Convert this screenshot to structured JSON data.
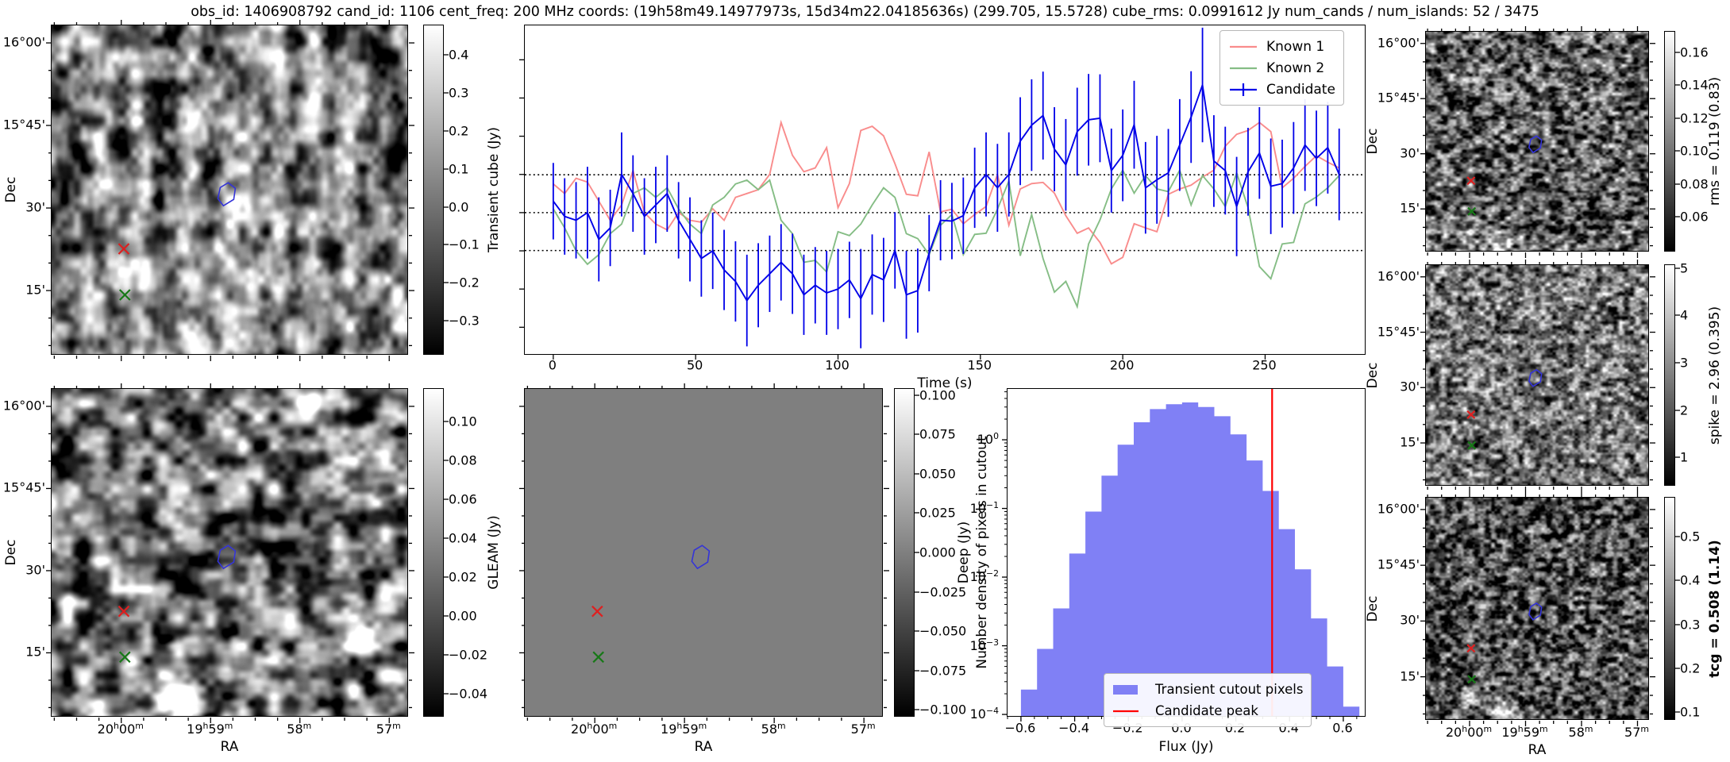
{
  "title": "obs_id: 1406908792 cand_id: 1106 cent_freq: 200 MHz coords: (19h58m49.14977973s, 15d34m22.04185636s) (299.705, 15.5728) cube_rms: 0.0991612 Jy num_cands / num_islands: 52 / 3475",
  "axes": {
    "dec_label": "Dec",
    "ra_label": "RA",
    "dec_ticks": [
      "16°00'",
      "15°45'",
      "30'",
      "15'"
    ],
    "ra_ticks": [
      "20h00m",
      "19h59m",
      "58m",
      "57m"
    ]
  },
  "markers": {
    "candidate_contour": {
      "shape": "contour",
      "color": "#3434d8"
    },
    "known1_x": {
      "shape": "x",
      "color": "#dd2020"
    },
    "known2_x": {
      "shape": "x",
      "color": "#177817"
    }
  },
  "panels": {
    "transient_cutout": {
      "colorbar_label": "Transient cube (Jy)",
      "colorbar_ticks": [
        "0.4",
        "0.3",
        "0.2",
        "0.1",
        "0.0",
        "-0.1",
        "-0.2",
        "-0.3"
      ],
      "colorbar_range": [
        -0.39,
        0.48
      ]
    },
    "gleam": {
      "colorbar_label": "GLEAM (Jy)",
      "colorbar_ticks": [
        "0.10",
        "0.08",
        "0.06",
        "0.04",
        "0.02",
        "0.00",
        "-0.02",
        "-0.04"
      ],
      "colorbar_range": [
        -0.052,
        0.117
      ]
    },
    "deep": {
      "colorbar_label": "Deep (Jy)",
      "colorbar_ticks": [
        "0.100",
        "0.075",
        "0.050",
        "0.025",
        "0.000",
        "-0.025",
        "-0.050",
        "-0.075",
        "-0.100"
      ],
      "colorbar_range": [
        -0.1043,
        0.1043
      ]
    },
    "rms": {
      "colorbar_label": "rms = 0.119 (0.83)",
      "label_bold": false,
      "colorbar_ticks": [
        "0.16",
        "0.14",
        "0.12",
        "0.10",
        "0.08",
        "0.06"
      ],
      "colorbar_range": [
        0.039,
        0.173
      ]
    },
    "spike": {
      "colorbar_label": "spike = 2.96 (0.395)",
      "label_bold": false,
      "colorbar_ticks": [
        "5",
        "4",
        "3",
        "2",
        "1"
      ],
      "colorbar_range": [
        0.4,
        5.08
      ]
    },
    "tcg": {
      "colorbar_label": "tcg = 0.508 (1.14)",
      "label_bold": true,
      "colorbar_ticks": [
        "0.5",
        "0.4",
        "0.3",
        "0.2",
        "0.1"
      ],
      "colorbar_range": [
        0.082,
        0.591
      ]
    }
  },
  "chart_data": [
    {
      "id": "lightcurve",
      "type": "line",
      "xlabel": "Time (s)",
      "ylabel": "",
      "xlim": [
        -10,
        285
      ],
      "ylim": [
        -0.37,
        0.49
      ],
      "x_ticks": [
        0,
        50,
        100,
        150,
        200,
        250
      ],
      "y_tick_min": -0.3,
      "y_tick_max": 0.4,
      "y_tick_step": 0.1,
      "hlines": [
        0.0991612,
        0.0,
        -0.0991612
      ],
      "legend_position": "upper right",
      "x": [
        0,
        4,
        8,
        12,
        16,
        20,
        24,
        28,
        32,
        36,
        40,
        44,
        48,
        52,
        56,
        60,
        64,
        68,
        72,
        76,
        80,
        84,
        88,
        92,
        96,
        100,
        104,
        108,
        112,
        116,
        120,
        124,
        128,
        132,
        136,
        140,
        144,
        148,
        152,
        156,
        160,
        164,
        168,
        172,
        176,
        180,
        184,
        188,
        192,
        196,
        200,
        204,
        208,
        212,
        216,
        220,
        224,
        228,
        232,
        236,
        240,
        244,
        248,
        252,
        256,
        260,
        264,
        268,
        272,
        276
      ],
      "series": [
        {
          "name": "Known 1",
          "color": "#f98c8c",
          "values": [
            0.075,
            0.05,
            0.09,
            0.08,
            0.03,
            -0.02,
            0.02,
            0.11,
            0,
            -0.03,
            -0.045,
            0,
            -0.02,
            -0.025,
            0.01,
            -0.02,
            0.04,
            0.05,
            0.06,
            0.1,
            0.236,
            0.15,
            0.107,
            0.117,
            0.17,
            0.013,
            0.076,
            0.215,
            0.226,
            0.201,
            0.128,
            0.048,
            0.044,
            0.159,
            0.002,
            0.009,
            -0.029,
            -0.005,
            0.016,
            0.1,
            -0.033,
            0.062,
            0.076,
            0.079,
            0.051,
            -0.008,
            -0.054,
            -0.04,
            -0.078,
            -0.134,
            -0.117,
            -0.029,
            -0.04,
            -0.05,
            0.048,
            0.062,
            0.072,
            0.093,
            0.111,
            0.174,
            0.205,
            0.215,
            0.236,
            0.212,
            0.065,
            0.09,
            0.121,
            0.149,
            0.132,
            0.117
          ]
        },
        {
          "name": "Known 2",
          "color": "#85bd85",
          "values": [
            0.01,
            -0.04,
            -0.1,
            -0.135,
            -0.11,
            -0.055,
            -0.03,
            0.05,
            0.065,
            0.04,
            0.065,
            0.01,
            -0.03,
            -0.055,
            0.02,
            0.04,
            0.075,
            0.085,
            0.06,
            0.085,
            -0.02,
            -0.055,
            -0.13,
            -0.125,
            -0.155,
            -0.05,
            -0.06,
            -0.03,
            0.02,
            0.065,
            0.04,
            -0.055,
            -0.068,
            -0.11,
            -0.033,
            -0.005,
            -0.11,
            -0.057,
            -0.054,
            0.009,
            0.083,
            -0.113,
            -0.005,
            -0.12,
            -0.208,
            -0.18,
            -0.246,
            -0.082,
            -0.019,
            0.062,
            0.111,
            0.051,
            0.097,
            0.062,
            0.055,
            0.111,
            0.02,
            0.097,
            0.062,
            0.016,
            0.104,
            0.013,
            -0.141,
            -0.173,
            -0.082,
            -0.078,
            0.023,
            0.041,
            0.065,
            0.097
          ]
        },
        {
          "name": "Candidate",
          "color": "#0000e8",
          "values": [
            0.03,
            -0.01,
            -0.02,
            0,
            -0.07,
            -0.04,
            0.1,
            0.05,
            -0.01,
            0.02,
            0.05,
            -0.02,
            -0.07,
            -0.12,
            -0.1,
            -0.15,
            -0.18,
            -0.23,
            -0.19,
            -0.16,
            -0.13,
            -0.16,
            -0.215,
            -0.19,
            -0.21,
            -0.2,
            -0.176,
            -0.225,
            -0.162,
            -0.176,
            -0.099,
            -0.215,
            -0.204,
            -0.106,
            -0.02,
            -0.022,
            -0.008,
            0.065,
            0.1,
            0.065,
            0.1,
            0.187,
            0.229,
            0.254,
            0.166,
            0.125,
            0.212,
            0.243,
            0.247,
            0.11,
            0.15,
            0.23,
            0.065,
            0.086,
            0.104,
            0.177,
            0.25,
            0.334,
            0.135,
            0.11,
            0.016,
            0.107,
            0.156,
            0.069,
            0.076,
            0.117,
            0.177,
            0.142,
            0.17,
            0.1
          ],
          "yerr": [
            0.1,
            0.1,
            0.1,
            0.12,
            0.11,
            0.1,
            0.11,
            0.1,
            0.1,
            0.1,
            0.1,
            0.1,
            0.11,
            0.1,
            0.1,
            0.105,
            0.105,
            0.12,
            0.11,
            0.1,
            0.1,
            0.105,
            0.105,
            0.1,
            0.11,
            0.105,
            0.1,
            0.13,
            0.105,
            0.11,
            0.1,
            0.115,
            0.11,
            0.1,
            0.105,
            0.1,
            0.1,
            0.105,
            0.11,
            0.115,
            0.11,
            0.115,
            0.12,
            0.115,
            0.11,
            0.12,
            0.115,
            0.12,
            0.115,
            0.11,
            0.12,
            0.115,
            0.12,
            0.115,
            0.115,
            0.12,
            0.12,
            0.15,
            0.12,
            0.115,
            0.13,
            0.115,
            0.12,
            0.125,
            0.115,
            0.12,
            0.12,
            0.125,
            0.12,
            0.12
          ]
        }
      ]
    },
    {
      "id": "flux-histogram",
      "type": "bar",
      "xlabel": "Flux (Jy)",
      "ylabel": "Number density of pixels in cutout",
      "yscale": "log",
      "xlim": [
        -0.65,
        0.68
      ],
      "ylim": [
        9.5e-05,
        5.5
      ],
      "x_ticks": [
        -0.6,
        -0.4,
        -0.2,
        0.0,
        0.2,
        0.4,
        0.6
      ],
      "y_ticks": [
        "10^0",
        "10^-1",
        "10^-2",
        "10^-3",
        "10^-4"
      ],
      "bin_start": -0.6,
      "bin_width": 0.06,
      "values": [
        0.00023,
        0.0009,
        0.0035,
        0.022,
        0.09,
        0.3,
        0.85,
        1.8,
        2.8,
        3.3,
        3.5,
        3.0,
        2.2,
        1.2,
        0.5,
        0.18,
        0.05,
        0.013,
        0.0025,
        0.0005,
        0.00013
      ],
      "bar_color": "#8080f5",
      "bar_label": "Transient cutout pixels",
      "vline": {
        "x": 0.335,
        "color": "#ff0000",
        "label": "Candidate peak"
      }
    }
  ]
}
